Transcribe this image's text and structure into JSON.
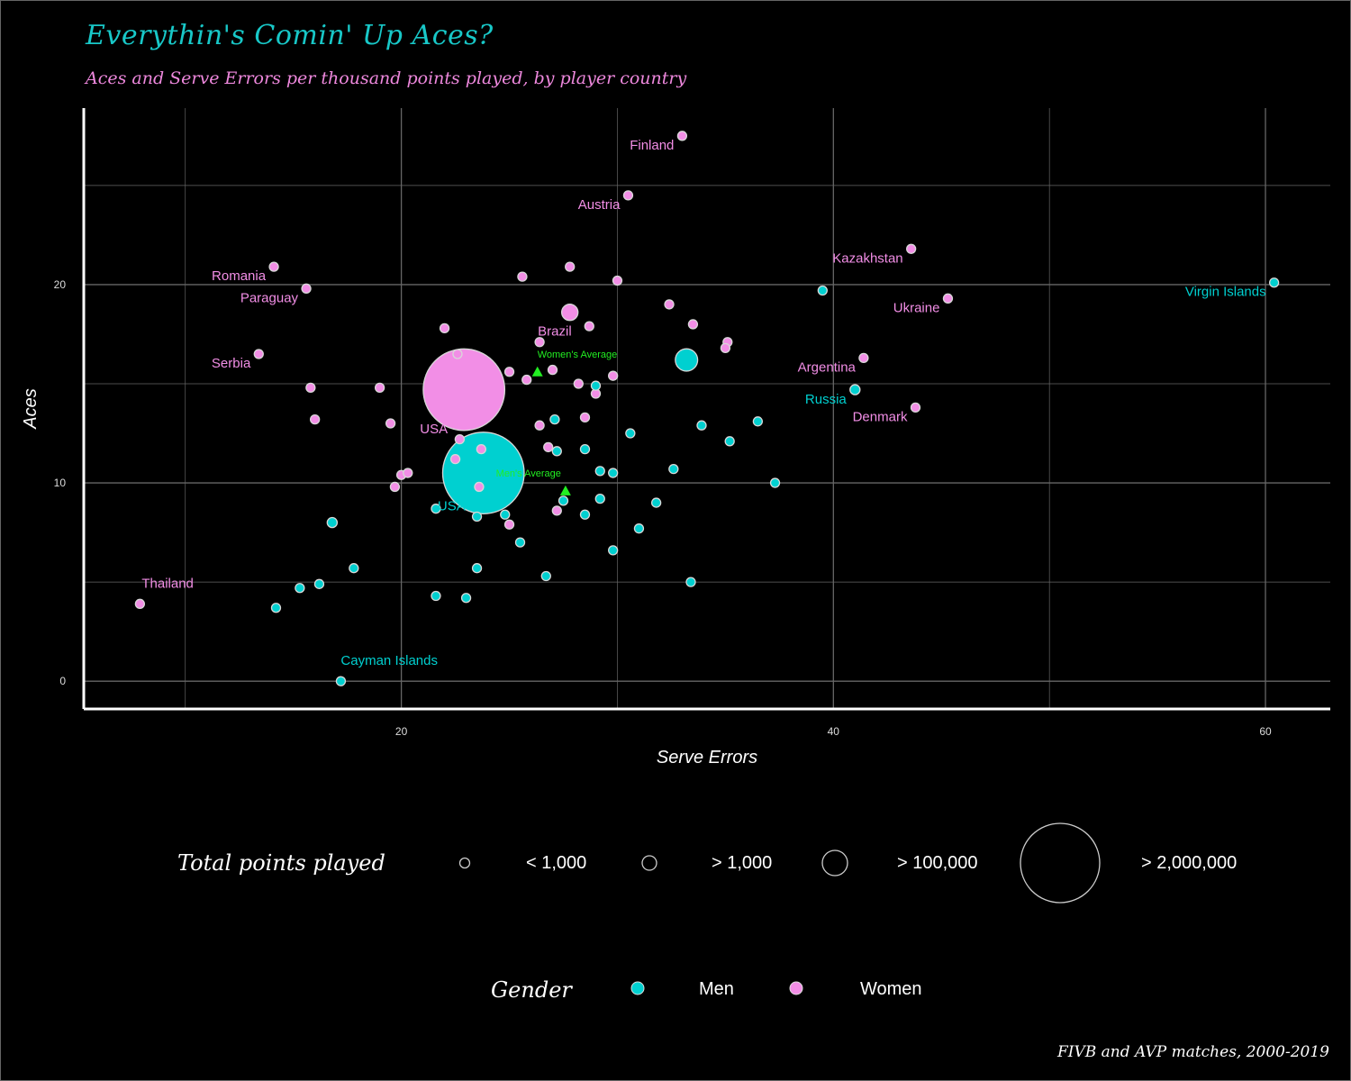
{
  "title": "Everythin's Comin' Up Aces?",
  "subtitle": "Aces and Serve Errors per thousand points played, by player country",
  "caption": "FIVB and AVP matches, 2000-2019",
  "colors": {
    "men": "#00d0d0",
    "women": "#f28ee6",
    "average": "#22ee22",
    "grid": "#666666",
    "axis": "#ffffff"
  },
  "legend": {
    "size_title": "Total points played",
    "size_items": [
      {
        "label": "< 1,000"
      },
      {
        "label": "> 1,000"
      },
      {
        "label": "> 100,000"
      },
      {
        "label": "> 2,000,000"
      }
    ],
    "gender_title": "Gender",
    "gender_items": [
      {
        "label": "Men",
        "color": "#00d0d0"
      },
      {
        "label": "Women",
        "color": "#f28ee6"
      }
    ]
  },
  "chart_data": {
    "type": "scatter",
    "title": "Everythin's Comin' Up Aces?",
    "xlabel": "Serve Errors",
    "ylabel": "Aces",
    "xlim": [
      5.3,
      63
    ],
    "ylim": [
      -1.4,
      28.9
    ],
    "xticks": [
      20,
      40,
      60
    ],
    "yticks": [
      0,
      10,
      20
    ],
    "grid": true,
    "series": [
      {
        "name": "Men",
        "color": "#00d0d0",
        "points": [
          {
            "x": 23.8,
            "y": 10.5,
            "size": 2000000,
            "label": "USA"
          },
          {
            "x": 33.2,
            "y": 16.2,
            "size": 150000
          },
          {
            "x": 41.0,
            "y": 14.7,
            "size": 30000,
            "label": "Russia"
          },
          {
            "x": 60.4,
            "y": 20.1,
            "size": 800,
            "label": "Virgin Islands"
          },
          {
            "x": 39.5,
            "y": 19.7,
            "size": 800
          },
          {
            "x": 17.2,
            "y": 0.0,
            "size": 800,
            "label": "Cayman Islands"
          },
          {
            "x": 16.8,
            "y": 8.0,
            "size": 30000
          },
          {
            "x": 14.2,
            "y": 3.7,
            "size": 5000
          },
          {
            "x": 15.3,
            "y": 4.7,
            "size": 5000
          },
          {
            "x": 16.2,
            "y": 4.9,
            "size": 5000
          },
          {
            "x": 17.8,
            "y": 5.7,
            "size": 5000
          },
          {
            "x": 21.6,
            "y": 4.3,
            "size": 5000
          },
          {
            "x": 23.0,
            "y": 4.2,
            "size": 5000
          },
          {
            "x": 23.5,
            "y": 5.7,
            "size": 5000
          },
          {
            "x": 21.6,
            "y": 8.7,
            "size": 10000
          },
          {
            "x": 23.5,
            "y": 8.3,
            "size": 5000
          },
          {
            "x": 24.8,
            "y": 8.4,
            "size": 12000
          },
          {
            "x": 25.5,
            "y": 7.0,
            "size": 5000
          },
          {
            "x": 26.7,
            "y": 5.3,
            "size": 5000
          },
          {
            "x": 27.2,
            "y": 11.6,
            "size": 5000
          },
          {
            "x": 27.1,
            "y": 13.2,
            "size": 15000
          },
          {
            "x": 27.5,
            "y": 9.1,
            "size": 3000
          },
          {
            "x": 28.5,
            "y": 11.7,
            "size": 8000
          },
          {
            "x": 28.5,
            "y": 8.4,
            "size": 5000
          },
          {
            "x": 29.0,
            "y": 14.9,
            "size": 5000
          },
          {
            "x": 29.2,
            "y": 10.6,
            "size": 10000
          },
          {
            "x": 29.2,
            "y": 9.2,
            "size": 10000
          },
          {
            "x": 29.8,
            "y": 10.5,
            "size": 10000
          },
          {
            "x": 29.8,
            "y": 6.6,
            "size": 5000
          },
          {
            "x": 30.6,
            "y": 12.5,
            "size": 15000
          },
          {
            "x": 31.0,
            "y": 7.7,
            "size": 3000
          },
          {
            "x": 31.8,
            "y": 9.0,
            "size": 8000
          },
          {
            "x": 32.6,
            "y": 10.7,
            "size": 8000
          },
          {
            "x": 33.4,
            "y": 5.0,
            "size": 5000
          },
          {
            "x": 33.9,
            "y": 12.9,
            "size": 15000
          },
          {
            "x": 35.2,
            "y": 12.1,
            "size": 15000
          },
          {
            "x": 36.5,
            "y": 13.1,
            "size": 12000
          },
          {
            "x": 37.3,
            "y": 10.0,
            "size": 3000
          }
        ]
      },
      {
        "name": "Women",
        "color": "#f28ee6",
        "points": [
          {
            "x": 22.9,
            "y": 14.7,
            "size": 2000000,
            "label": "USA"
          },
          {
            "x": 33.0,
            "y": 27.5,
            "size": 5000,
            "label": "Finland"
          },
          {
            "x": 30.5,
            "y": 24.5,
            "size": 8000,
            "label": "Austria"
          },
          {
            "x": 43.6,
            "y": 21.8,
            "size": 5000,
            "label": "Kazakhstan"
          },
          {
            "x": 45.3,
            "y": 19.3,
            "size": 5000,
            "label": "Ukraine"
          },
          {
            "x": 14.1,
            "y": 20.9,
            "size": 5000,
            "label": "Romania"
          },
          {
            "x": 15.6,
            "y": 19.8,
            "size": 5000,
            "label": "Paraguay"
          },
          {
            "x": 13.4,
            "y": 16.5,
            "size": 5000,
            "label": "Serbia"
          },
          {
            "x": 41.4,
            "y": 16.3,
            "size": 5000,
            "label": "Argentina"
          },
          {
            "x": 43.8,
            "y": 13.8,
            "size": 5000,
            "label": "Denmark"
          },
          {
            "x": 7.9,
            "y": 3.9,
            "size": 5000,
            "label": "Thailand"
          },
          {
            "x": 27.8,
            "y": 18.6,
            "size": 80000,
            "label": "Brazil"
          },
          {
            "x": 15.8,
            "y": 14.8,
            "size": 5000
          },
          {
            "x": 16.0,
            "y": 13.2,
            "size": 5000
          },
          {
            "x": 19.0,
            "y": 14.8,
            "size": 5000
          },
          {
            "x": 19.5,
            "y": 13.0,
            "size": 15000
          },
          {
            "x": 20.0,
            "y": 10.4,
            "size": 10000
          },
          {
            "x": 20.3,
            "y": 10.5,
            "size": 8000
          },
          {
            "x": 19.7,
            "y": 9.8,
            "size": 5000
          },
          {
            "x": 22.0,
            "y": 17.8,
            "size": 10000
          },
          {
            "x": 22.6,
            "y": 16.5,
            "size": 12000
          },
          {
            "x": 22.5,
            "y": 11.2,
            "size": 5000
          },
          {
            "x": 22.7,
            "y": 12.2,
            "size": 15000
          },
          {
            "x": 23.7,
            "y": 11.7,
            "size": 8000
          },
          {
            "x": 23.6,
            "y": 9.8,
            "size": 5000
          },
          {
            "x": 25.0,
            "y": 15.6,
            "size": 8000
          },
          {
            "x": 25.6,
            "y": 20.4,
            "size": 8000
          },
          {
            "x": 25.8,
            "y": 15.2,
            "size": 10000
          },
          {
            "x": 26.4,
            "y": 17.1,
            "size": 10000
          },
          {
            "x": 26.4,
            "y": 12.9,
            "size": 8000
          },
          {
            "x": 26.8,
            "y": 11.8,
            "size": 8000
          },
          {
            "x": 27.0,
            "y": 15.7,
            "size": 5000
          },
          {
            "x": 27.2,
            "y": 8.6,
            "size": 5000
          },
          {
            "x": 27.8,
            "y": 20.9,
            "size": 5000
          },
          {
            "x": 28.2,
            "y": 15.0,
            "size": 12000
          },
          {
            "x": 28.5,
            "y": 13.3,
            "size": 12000
          },
          {
            "x": 28.7,
            "y": 17.9,
            "size": 10000
          },
          {
            "x": 29.0,
            "y": 14.5,
            "size": 8000
          },
          {
            "x": 29.8,
            "y": 15.4,
            "size": 12000
          },
          {
            "x": 30.0,
            "y": 20.2,
            "size": 15000
          },
          {
            "x": 25.0,
            "y": 7.9,
            "size": 5000
          },
          {
            "x": 32.4,
            "y": 19.0,
            "size": 15000
          },
          {
            "x": 33.5,
            "y": 18.0,
            "size": 10000
          },
          {
            "x": 35.1,
            "y": 17.1,
            "size": 12000
          },
          {
            "x": 35.0,
            "y": 16.8,
            "size": 5000
          }
        ]
      }
    ],
    "averages": [
      {
        "name": "Women's Average",
        "x": 26.3,
        "y": 15.6
      },
      {
        "name": "Men's Average",
        "x": 27.6,
        "y": 9.6
      }
    ]
  }
}
